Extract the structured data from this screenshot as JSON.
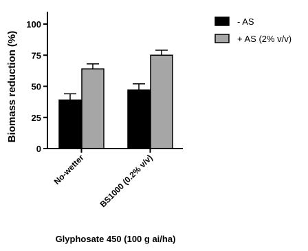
{
  "chart_data": {
    "type": "bar",
    "x_label": "Glyphosate 450 (100 g ai/ha)",
    "y_label": "Biomass reduction (%)",
    "categories": [
      "No-wetter",
      "BS1000 (0.2% v/v)"
    ],
    "series": [
      {
        "name": "- AS",
        "color": "#000000",
        "values": [
          39,
          47
        ],
        "errors": [
          5,
          5
        ]
      },
      {
        "name": "+ AS (2% v/v)",
        "color": "#a6a6a6",
        "values": [
          64,
          75
        ],
        "errors": [
          4,
          4
        ]
      }
    ],
    "ylim": [
      0,
      100
    ],
    "yticks": [
      0,
      25,
      50,
      75,
      100
    ]
  }
}
